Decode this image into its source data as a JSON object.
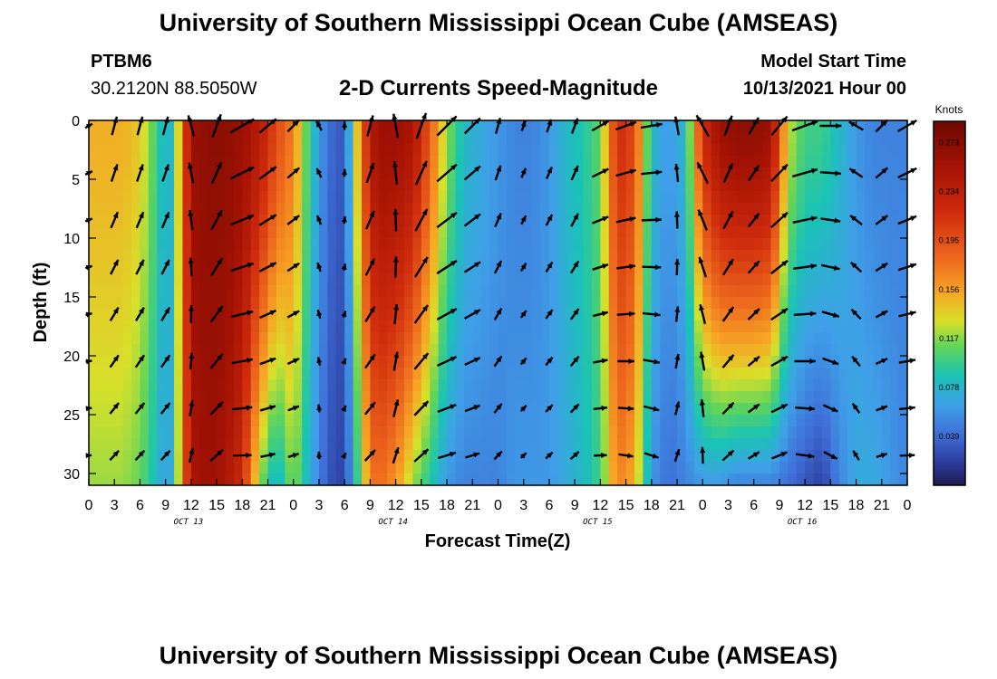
{
  "header": {
    "title": "University of Southern Mississippi Ocean Cube (AMSEAS)",
    "station": "PTBM6",
    "coords": "30.2120N  88.5050W",
    "subtitle": "2-D Currents Speed-Magnitude",
    "model_start_label": "Model Start Time",
    "model_start_value": "10/13/2021 Hour 00"
  },
  "footer": {
    "title": "University of Southern Mississippi Ocean Cube (AMSEAS)"
  },
  "chart_data": {
    "type": "heatmap",
    "title": "2-D Currents Speed-Magnitude",
    "xlabel": "Forecast Time(Z)",
    "ylabel": "Depth (ft)",
    "x_ticks": [
      "0",
      "3",
      "6",
      "9",
      "12",
      "15",
      "18",
      "21",
      "0",
      "3",
      "6",
      "9",
      "12",
      "15",
      "18",
      "21",
      "0",
      "3",
      "6",
      "9",
      "12",
      "15",
      "18",
      "21",
      "0",
      "3",
      "6",
      "9",
      "12",
      "15",
      "18",
      "21",
      "0"
    ],
    "day_labels": [
      "OCT 13",
      "OCT 14",
      "OCT 15",
      "OCT 16"
    ],
    "y_ticks": [
      0,
      5,
      10,
      15,
      20,
      25,
      30
    ],
    "ylim": [
      0,
      31
    ],
    "x_range_hours": [
      0,
      96
    ],
    "colorbar": {
      "label": "Knots",
      "ticks": [
        0.273,
        0.234,
        0.195,
        0.156,
        0.117,
        0.078,
        0.039
      ],
      "range": [
        0.0,
        0.29
      ]
    },
    "speed_profile_hours": [
      0,
      2,
      4,
      6,
      8,
      9,
      10,
      11,
      12,
      14,
      16,
      18,
      20,
      22,
      24,
      26,
      28,
      30,
      32,
      33,
      34,
      36,
      38,
      40,
      42,
      44,
      46,
      48,
      50,
      52,
      54,
      56,
      58,
      60,
      62,
      64,
      66,
      68,
      70,
      72,
      74,
      76,
      78,
      80,
      82,
      84,
      86,
      88,
      90,
      92,
      94,
      96
    ],
    "speed_surface_knots": [
      0.15,
      0.15,
      0.15,
      0.14,
      0.1,
      0.07,
      0.09,
      0.18,
      0.26,
      0.27,
      0.27,
      0.26,
      0.24,
      0.2,
      0.17,
      0.09,
      0.04,
      0.03,
      0.18,
      0.24,
      0.26,
      0.26,
      0.25,
      0.19,
      0.12,
      0.08,
      0.07,
      0.06,
      0.05,
      0.05,
      0.06,
      0.08,
      0.09,
      0.11,
      0.22,
      0.2,
      0.08,
      0.06,
      0.08,
      0.22,
      0.26,
      0.27,
      0.27,
      0.26,
      0.13,
      0.1,
      0.1,
      0.08,
      0.06,
      0.05,
      0.05,
      0.05
    ],
    "speed_bottom_knots": [
      0.12,
      0.12,
      0.12,
      0.11,
      0.08,
      0.06,
      0.08,
      0.17,
      0.25,
      0.26,
      0.25,
      0.22,
      0.12,
      0.07,
      0.12,
      0.07,
      0.03,
      0.02,
      0.12,
      0.17,
      0.18,
      0.16,
      0.12,
      0.09,
      0.06,
      0.05,
      0.05,
      0.05,
      0.06,
      0.06,
      0.06,
      0.07,
      0.08,
      0.1,
      0.17,
      0.15,
      0.06,
      0.04,
      0.05,
      0.06,
      0.06,
      0.05,
      0.05,
      0.05,
      0.04,
      0.03,
      0.02,
      0.05,
      0.07,
      0.07,
      0.06,
      0.05
    ],
    "arrow_hours": [
      0,
      3,
      6,
      9,
      12,
      15,
      18,
      21,
      24,
      27,
      30,
      33,
      36,
      39,
      42,
      45,
      48,
      51,
      54,
      57,
      60,
      63,
      66,
      69,
      72,
      75,
      78,
      81,
      84,
      87,
      90,
      93,
      96
    ],
    "arrow_depths_ft": [
      0,
      4,
      8,
      12,
      16,
      20,
      24,
      28
    ],
    "arrow_direction_deg": [
      60,
      15,
      15,
      15,
      345,
      20,
      60,
      50,
      45,
      330,
      0,
      15,
      350,
      20,
      45,
      45,
      15,
      20,
      20,
      20,
      60,
      70,
      80,
      350,
      330,
      20,
      30,
      40,
      70,
      90,
      300,
      45,
      60
    ],
    "arrow_surface_scale": [
      0.3,
      0.7,
      0.7,
      0.7,
      0.8,
      0.9,
      1.0,
      0.8,
      0.6,
      0.4,
      0.3,
      0.8,
      0.9,
      1.0,
      1.0,
      0.8,
      0.6,
      0.4,
      0.5,
      0.6,
      0.7,
      0.8,
      0.8,
      0.7,
      0.9,
      0.8,
      0.7,
      0.9,
      1.0,
      0.8,
      0.6,
      0.6,
      0.8
    ]
  }
}
